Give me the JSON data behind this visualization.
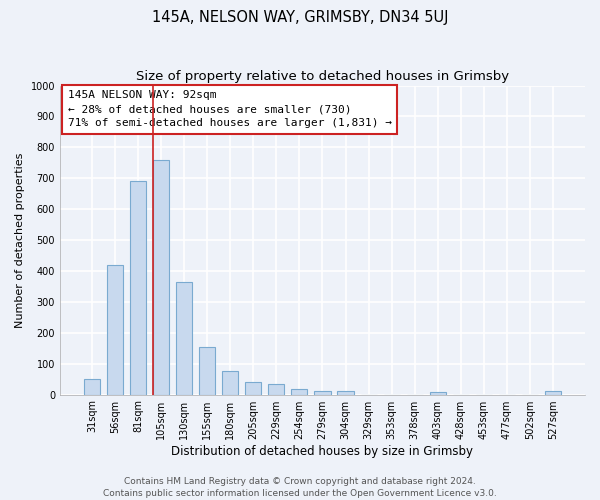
{
  "title": "145A, NELSON WAY, GRIMSBY, DN34 5UJ",
  "subtitle": "Size of property relative to detached houses in Grimsby",
  "xlabel": "Distribution of detached houses by size in Grimsby",
  "ylabel": "Number of detached properties",
  "bar_labels": [
    "31sqm",
    "56sqm",
    "81sqm",
    "105sqm",
    "130sqm",
    "155sqm",
    "180sqm",
    "205sqm",
    "229sqm",
    "254sqm",
    "279sqm",
    "304sqm",
    "329sqm",
    "353sqm",
    "378sqm",
    "403sqm",
    "428sqm",
    "453sqm",
    "477sqm",
    "502sqm",
    "527sqm"
  ],
  "bar_values": [
    50,
    420,
    690,
    760,
    365,
    153,
    75,
    42,
    33,
    18,
    12,
    10,
    0,
    0,
    0,
    8,
    0,
    0,
    0,
    0,
    10
  ],
  "bar_color": "#c8d9ee",
  "bar_edge_color": "#7aaad0",
  "vline_color": "#cc2222",
  "vline_x_index": 3,
  "ylim": [
    0,
    1000
  ],
  "yticks": [
    0,
    100,
    200,
    300,
    400,
    500,
    600,
    700,
    800,
    900,
    1000
  ],
  "annotation_text_line1": "145A NELSON WAY: 92sqm",
  "annotation_text_line2": "← 28% of detached houses are smaller (730)",
  "annotation_text_line3": "71% of semi-detached houses are larger (1,831) →",
  "footer_line1": "Contains HM Land Registry data © Crown copyright and database right 2024.",
  "footer_line2": "Contains public sector information licensed under the Open Government Licence v3.0.",
  "bg_color": "#eef2f9",
  "grid_color": "white",
  "title_fontsize": 10.5,
  "subtitle_fontsize": 9.5,
  "xlabel_fontsize": 8.5,
  "ylabel_fontsize": 8,
  "tick_fontsize": 7,
  "annotation_fontsize": 8,
  "footer_fontsize": 6.5,
  "bar_width": 0.7
}
